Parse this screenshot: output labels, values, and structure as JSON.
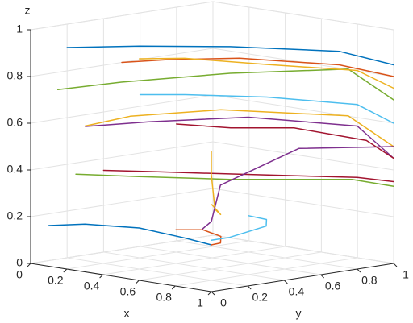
{
  "chart_data": {
    "type": "line3d",
    "xlabel": "x",
    "ylabel": "y",
    "zlabel": "z",
    "xlim": [
      0,
      1
    ],
    "ylim": [
      0,
      1
    ],
    "zlim": [
      0,
      1
    ],
    "xticks": [
      0,
      0.2,
      0.4,
      0.6,
      0.8,
      1
    ],
    "yticks": [
      0,
      0.2,
      0.4,
      0.6,
      0.8,
      1
    ],
    "zticks": [
      0,
      0.2,
      0.4,
      0.6,
      0.8,
      1
    ],
    "grid": true,
    "series": [
      {
        "color": "#0072BD",
        "x": [
          0,
          0.3,
          0.6,
          0.9,
          1
        ],
        "y": [
          0.2,
          0.3,
          0.5,
          0.8,
          1
        ],
        "z": [
          0.9,
          0.93,
          0.94,
          0.92,
          0.85
        ]
      },
      {
        "color": "#D95319",
        "x": [
          0,
          0.2,
          0.5,
          0.85,
          1
        ],
        "y": [
          0.5,
          0.55,
          0.65,
          0.85,
          1
        ],
        "z": [
          0.8,
          0.83,
          0.86,
          0.85,
          0.8
        ]
      },
      {
        "color": "#77AC30",
        "x": [
          0.1,
          0.35,
          0.7,
          0.95,
          1
        ],
        "y": [
          0.05,
          0.15,
          0.4,
          0.8,
          1
        ],
        "z": [
          0.75,
          0.8,
          0.85,
          0.85,
          0.7
        ]
      },
      {
        "color": "#7E2F8E",
        "x": [
          0,
          0.3,
          0.7,
          0.95,
          1
        ],
        "y": [
          0.3,
          0.35,
          0.5,
          0.85,
          1
        ],
        "z": [
          0.55,
          0.6,
          0.65,
          0.6,
          0.45
        ]
      },
      {
        "color": "#EDB120",
        "x": [
          0.2,
          0.4,
          0.7,
          0.95,
          1
        ],
        "y": [
          0.1,
          0.15,
          0.35,
          0.8,
          1
        ],
        "z": [
          0.6,
          0.66,
          0.7,
          0.65,
          0.5
        ]
      },
      {
        "color": "#4DBEEE",
        "x": [
          0,
          0.25,
          0.6,
          0.9,
          1
        ],
        "y": [
          0.6,
          0.6,
          0.7,
          0.9,
          1
        ],
        "z": [
          0.65,
          0.68,
          0.7,
          0.68,
          0.6
        ]
      },
      {
        "color": "#A2142F",
        "x": [
          0,
          0.3,
          0.65,
          0.95,
          1
        ],
        "y": [
          0.4,
          0.4,
          0.5,
          0.85,
          1
        ],
        "z": [
          0.35,
          0.38,
          0.4,
          0.38,
          0.35
        ]
      },
      {
        "color": "#77AC30",
        "x": [
          0.2,
          0.5,
          0.8,
          0.97,
          1
        ],
        "y": [
          0.05,
          0.1,
          0.3,
          0.8,
          1
        ],
        "z": [
          0.4,
          0.42,
          0.42,
          0.38,
          0.33
        ]
      },
      {
        "color": "#0072BD",
        "x": [
          0,
          0.2,
          0.5,
          0.8,
          1
        ],
        "y": [
          0.1,
          0.1,
          0.1,
          0.05,
          0
        ],
        "z": [
          0.15,
          0.18,
          0.2,
          0.2,
          0.2
        ]
      },
      {
        "color": "#D95319",
        "x": [
          0.3,
          0.5,
          0.75,
          0.95,
          1
        ],
        "y": [
          0.5,
          0.45,
          0.3,
          0.1,
          0
        ],
        "z": [
          0.12,
          0.15,
          0.17,
          0.19,
          0.2
        ]
      },
      {
        "color": "#EDB120",
        "x": [
          0.7,
          0.9,
          1,
          1,
          1
        ],
        "y": [
          0.3,
          0.15,
          0.02,
          0,
          0
        ],
        "z": [
          0.3,
          0.3,
          0.35,
          0.5,
          0.6
        ]
      },
      {
        "color": "#7E2F8E",
        "x": [
          0.9,
          1,
          1,
          0.98,
          1
        ],
        "y": [
          0.05,
          0,
          0.05,
          0.5,
          1
        ],
        "z": [
          0.25,
          0.3,
          0.45,
          0.55,
          0.5
        ]
      },
      {
        "color": "#4DBEEE",
        "x": [
          0.5,
          0.7,
          0.9,
          1,
          1
        ],
        "y": [
          0.7,
          0.6,
          0.4,
          0.1,
          0
        ],
        "z": [
          0.18,
          0.2,
          0.22,
          0.22,
          0.22
        ]
      },
      {
        "color": "#A2142F",
        "x": [
          0,
          0.3,
          0.6,
          0.9,
          1
        ],
        "y": [
          0.8,
          0.8,
          0.85,
          0.95,
          1
        ],
        "z": [
          0.5,
          0.52,
          0.55,
          0.52,
          0.45
        ]
      },
      {
        "color": "#EDB120",
        "x": [
          0.4,
          0.6,
          0.85,
          1,
          1
        ],
        "y": [
          0.2,
          0.25,
          0.45,
          0.8,
          1
        ],
        "z": [
          0.9,
          0.92,
          0.9,
          0.85,
          0.75
        ]
      }
    ]
  }
}
